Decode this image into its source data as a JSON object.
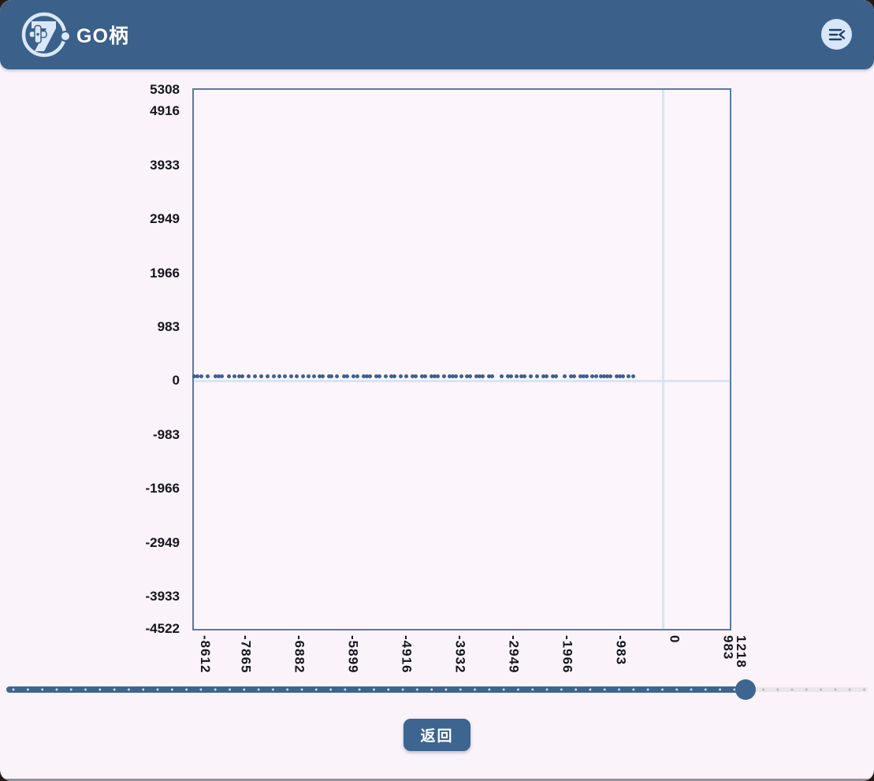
{
  "header": {
    "title": "GO柄",
    "logo_icon": "gamepad-g7-logo",
    "menu_icon": "collapse-menu-icon"
  },
  "chart_data": {
    "type": "scatter",
    "title": "",
    "xlabel": "",
    "ylabel": "",
    "xlim": [
      -8612,
      1218
    ],
    "ylim": [
      -4522,
      5308
    ],
    "grid": "zero-axis-lines-only",
    "legend": "none",
    "x_ticks": [
      {
        "v": -8612,
        "label": "-8612"
      },
      {
        "v": -7865,
        "label": "-7865"
      },
      {
        "v": -6882,
        "label": "-6882"
      },
      {
        "v": -5899,
        "label": "-5899"
      },
      {
        "v": -4916,
        "label": "-4916"
      },
      {
        "v": -3932,
        "label": "-3932"
      },
      {
        "v": -2949,
        "label": "-2949"
      },
      {
        "v": -1966,
        "label": "-1966"
      },
      {
        "v": -983,
        "label": "-983"
      },
      {
        "v": 0,
        "label": "0"
      },
      {
        "v": 983,
        "label": "983"
      },
      {
        "v": 1218,
        "label": "1218"
      }
    ],
    "y_ticks": [
      {
        "v": 5308,
        "label": "5308"
      },
      {
        "v": 4916,
        "label": "4916"
      },
      {
        "v": 3933,
        "label": "3933"
      },
      {
        "v": 2949,
        "label": "2949"
      },
      {
        "v": 1966,
        "label": "1966"
      },
      {
        "v": 983,
        "label": "983"
      },
      {
        "v": 0,
        "label": "0"
      },
      {
        "v": -983,
        "label": "-983"
      },
      {
        "v": -1966,
        "label": "-1966"
      },
      {
        "v": -2949,
        "label": "-2949"
      },
      {
        "v": -3933,
        "label": "-3933"
      },
      {
        "v": -4522,
        "label": "-4522"
      }
    ],
    "points_y_constant": 80,
    "points_x": [
      -8598,
      -8540,
      -8468,
      -8353,
      -8210,
      -8152,
      -8095,
      -7965,
      -7865,
      -7779,
      -7721,
      -7606,
      -7491,
      -7376,
      -7261,
      -7146,
      -7046,
      -6945,
      -6830,
      -6729,
      -6614,
      -6514,
      -6413,
      -6313,
      -6255,
      -6140,
      -6083,
      -5982,
      -5853,
      -5795,
      -5680,
      -5608,
      -5493,
      -5436,
      -5378,
      -5263,
      -5206,
      -5091,
      -4990,
      -4933,
      -4818,
      -4717,
      -4602,
      -4545,
      -4430,
      -4372,
      -4257,
      -4200,
      -4142,
      -4027,
      -3927,
      -3869,
      -3812,
      -3711,
      -3596,
      -3539,
      -3424,
      -3366,
      -3309,
      -3194,
      -3136,
      -2964,
      -2849,
      -2791,
      -2691,
      -2605,
      -2547,
      -2432,
      -2317,
      -2202,
      -2145,
      -2030,
      -1972,
      -1814,
      -1699,
      -1642,
      -1527,
      -1469,
      -1412,
      -1311,
      -1239,
      -1139,
      -1081,
      -1024,
      -966,
      -851,
      -794,
      -736,
      -636,
      -550
    ],
    "colors": {
      "point": "#3a6190",
      "grid": "#d9e4f3",
      "plot_border": "#5b79a6",
      "tick_text": "#14161f"
    }
  },
  "slider": {
    "value_percent": 85.8,
    "fill_color": "#3d6590",
    "track_color": "#e8e6e9"
  },
  "footer": {
    "back_label": "返回"
  },
  "theme": {
    "header_bg": "#3b608a",
    "page_bg": "#fbf3fa",
    "accent": "#3d6590"
  }
}
